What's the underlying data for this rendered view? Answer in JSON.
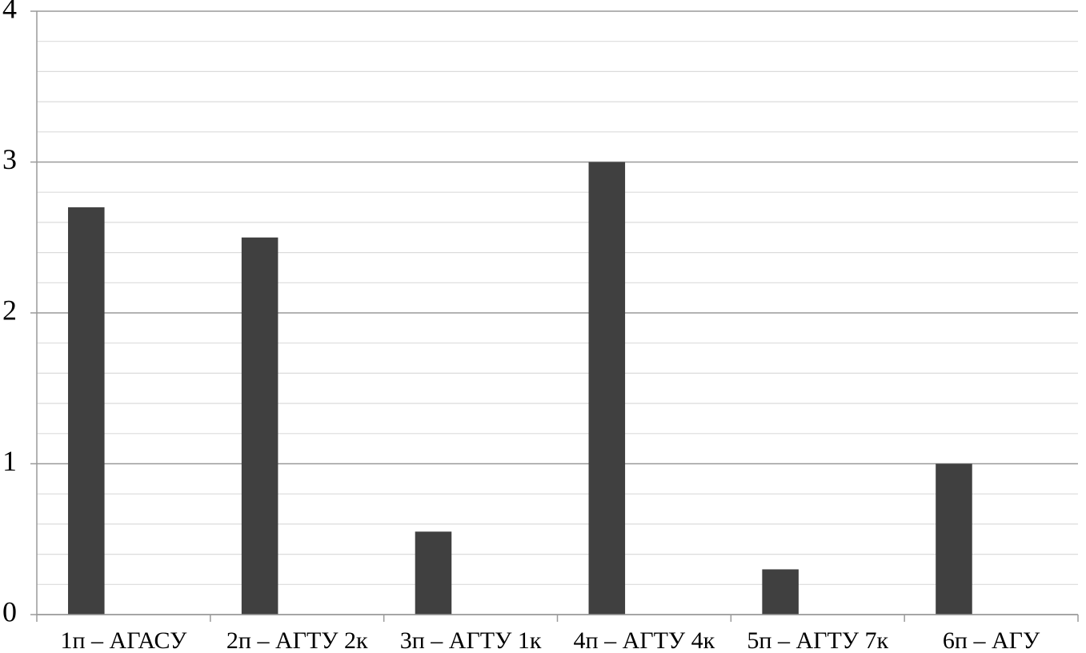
{
  "chart_data": {
    "type": "bar",
    "categories": [
      "1п – АГАСУ",
      "2п – АГТУ 2к",
      "3п – АГТУ 1к",
      "4п – АГТУ 4к",
      "5п – АГТУ 7к",
      "6п – АГУ"
    ],
    "values": [
      2.7,
      2.5,
      0.55,
      3,
      0.3,
      1
    ],
    "color": "#404040",
    "ylim": [
      0,
      4
    ],
    "yticks": [
      0,
      1,
      2,
      3,
      4
    ],
    "minor_yticks": [
      0.2,
      0.4,
      0.6,
      0.8,
      1.2,
      1.4,
      1.6,
      1.8,
      2.2,
      2.4,
      2.6,
      2.8,
      3.2,
      3.4,
      3.6,
      3.8
    ],
    "grid": true
  }
}
